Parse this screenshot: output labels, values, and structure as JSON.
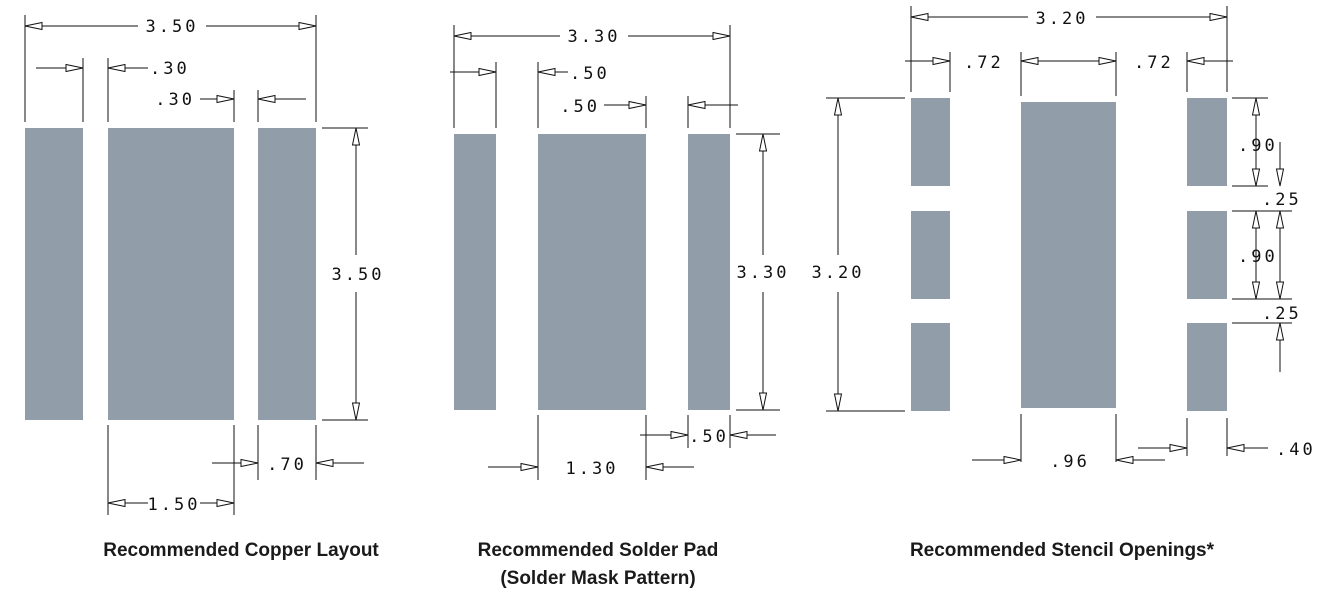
{
  "captions": {
    "copper": "Recommended Copper Layout",
    "solder_line1": "Recommended Solder Pad",
    "solder_line2": "(Solder Mask Pattern)",
    "stencil": "Recommended Stencil Openings*"
  },
  "copper": {
    "overall_width": "3.50",
    "side_pad_gap": ".30",
    "center_gap": ".30",
    "height": "3.50",
    "side_pad_width": ".70",
    "center_pad_width": "1.50"
  },
  "solder": {
    "overall_width": "3.30",
    "side_gap": ".50",
    "center_gap": ".50",
    "height": "3.30",
    "side_pad_width": ".50",
    "center_pad_width": "1.30"
  },
  "stencil": {
    "overall_width": "3.20",
    "left_gap": ".72",
    "right_gap": ".72",
    "height": "3.20",
    "segment_height_1": ".90",
    "segment_gap_1": ".25",
    "segment_height_2": ".90",
    "segment_gap_2": ".25",
    "center_pad_width": ".96",
    "side_pad_width": ".40"
  },
  "colors": {
    "pad": "#919ea9",
    "line": "#111111"
  }
}
